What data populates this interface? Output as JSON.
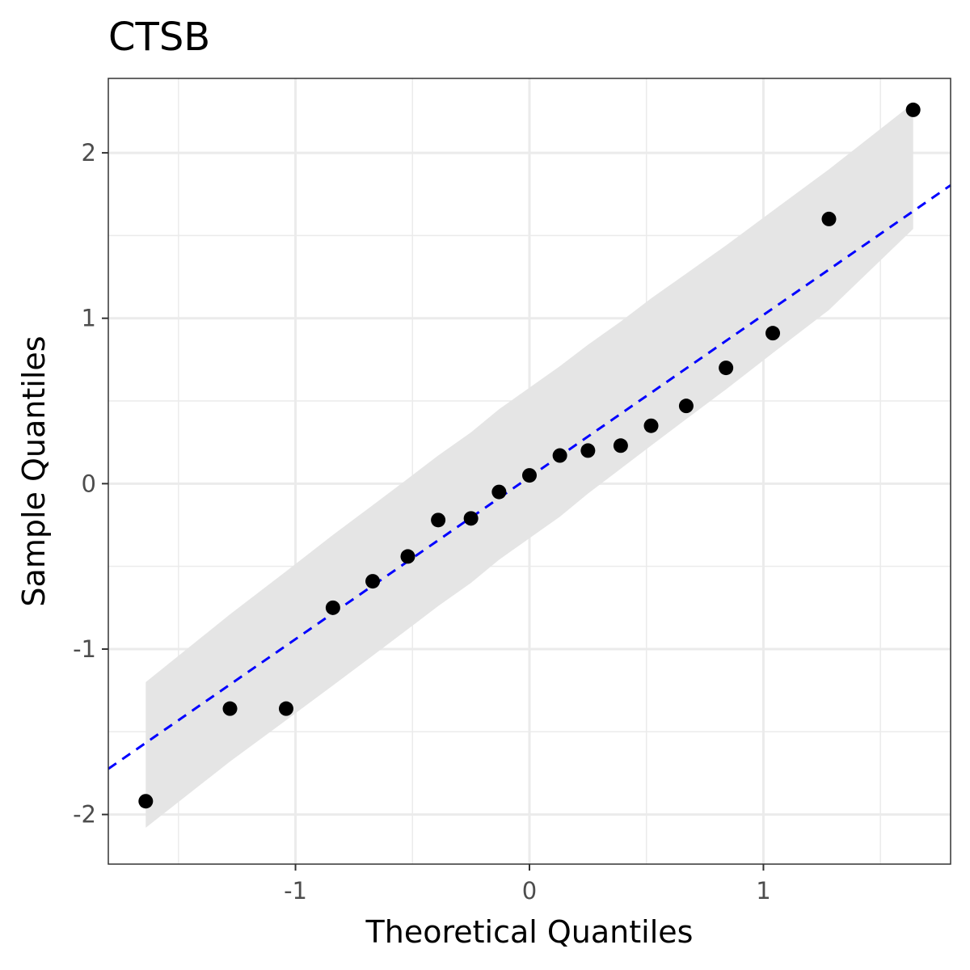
{
  "chart_data": {
    "type": "scatter",
    "title": "CTSB",
    "xlabel": "Theoretical Quantiles",
    "ylabel": "Sample Quantiles",
    "xlim": [
      -1.8,
      1.8
    ],
    "ylim": [
      -2.3,
      2.45
    ],
    "x_ticks": [
      -1,
      0,
      1
    ],
    "x_tick_labels": [
      "-1",
      "0",
      "1"
    ],
    "y_ticks": [
      -2,
      -1,
      0,
      1,
      2
    ],
    "y_tick_labels": [
      "-2",
      "-1",
      "0",
      "1",
      "2"
    ],
    "grid": true,
    "points": [
      {
        "x": -1.64,
        "y": -1.92
      },
      {
        "x": -1.28,
        "y": -1.36
      },
      {
        "x": -1.04,
        "y": -1.36
      },
      {
        "x": -0.84,
        "y": -0.75
      },
      {
        "x": -0.67,
        "y": -0.59
      },
      {
        "x": -0.52,
        "y": -0.44
      },
      {
        "x": -0.39,
        "y": -0.22
      },
      {
        "x": -0.25,
        "y": -0.21
      },
      {
        "x": -0.13,
        "y": -0.05
      },
      {
        "x": 0.0,
        "y": 0.05
      },
      {
        "x": 0.13,
        "y": 0.17
      },
      {
        "x": 0.25,
        "y": 0.2
      },
      {
        "x": 0.39,
        "y": 0.23
      },
      {
        "x": 0.52,
        "y": 0.35
      },
      {
        "x": 0.67,
        "y": 0.47
      },
      {
        "x": 0.84,
        "y": 0.7
      },
      {
        "x": 1.04,
        "y": 0.91
      },
      {
        "x": 1.28,
        "y": 1.6
      },
      {
        "x": 1.64,
        "y": 2.26
      }
    ],
    "reference_line": {
      "slope": 0.98,
      "intercept": 0.04,
      "color": "#0000ff",
      "style": "dashed"
    },
    "confidence_band": {
      "color": "#e5e5e5",
      "x": [
        -1.64,
        -1.28,
        -1.04,
        -0.84,
        -0.67,
        -0.52,
        -0.39,
        -0.25,
        -0.13,
        0.0,
        0.13,
        0.25,
        0.39,
        0.52,
        0.67,
        0.84,
        1.04,
        1.28,
        1.64
      ],
      "lower": [
        -2.08,
        -1.68,
        -1.43,
        -1.22,
        -1.04,
        -0.88,
        -0.74,
        -0.6,
        -0.46,
        -0.33,
        -0.2,
        -0.06,
        0.09,
        0.23,
        0.39,
        0.57,
        0.79,
        1.05,
        1.54
      ],
      "upper": [
        -1.2,
        -0.79,
        -0.53,
        -0.31,
        -0.13,
        0.03,
        0.17,
        0.31,
        0.45,
        0.58,
        0.71,
        0.84,
        0.98,
        1.12,
        1.27,
        1.44,
        1.65,
        1.9,
        2.3
      ]
    },
    "point_color": "#000000"
  }
}
